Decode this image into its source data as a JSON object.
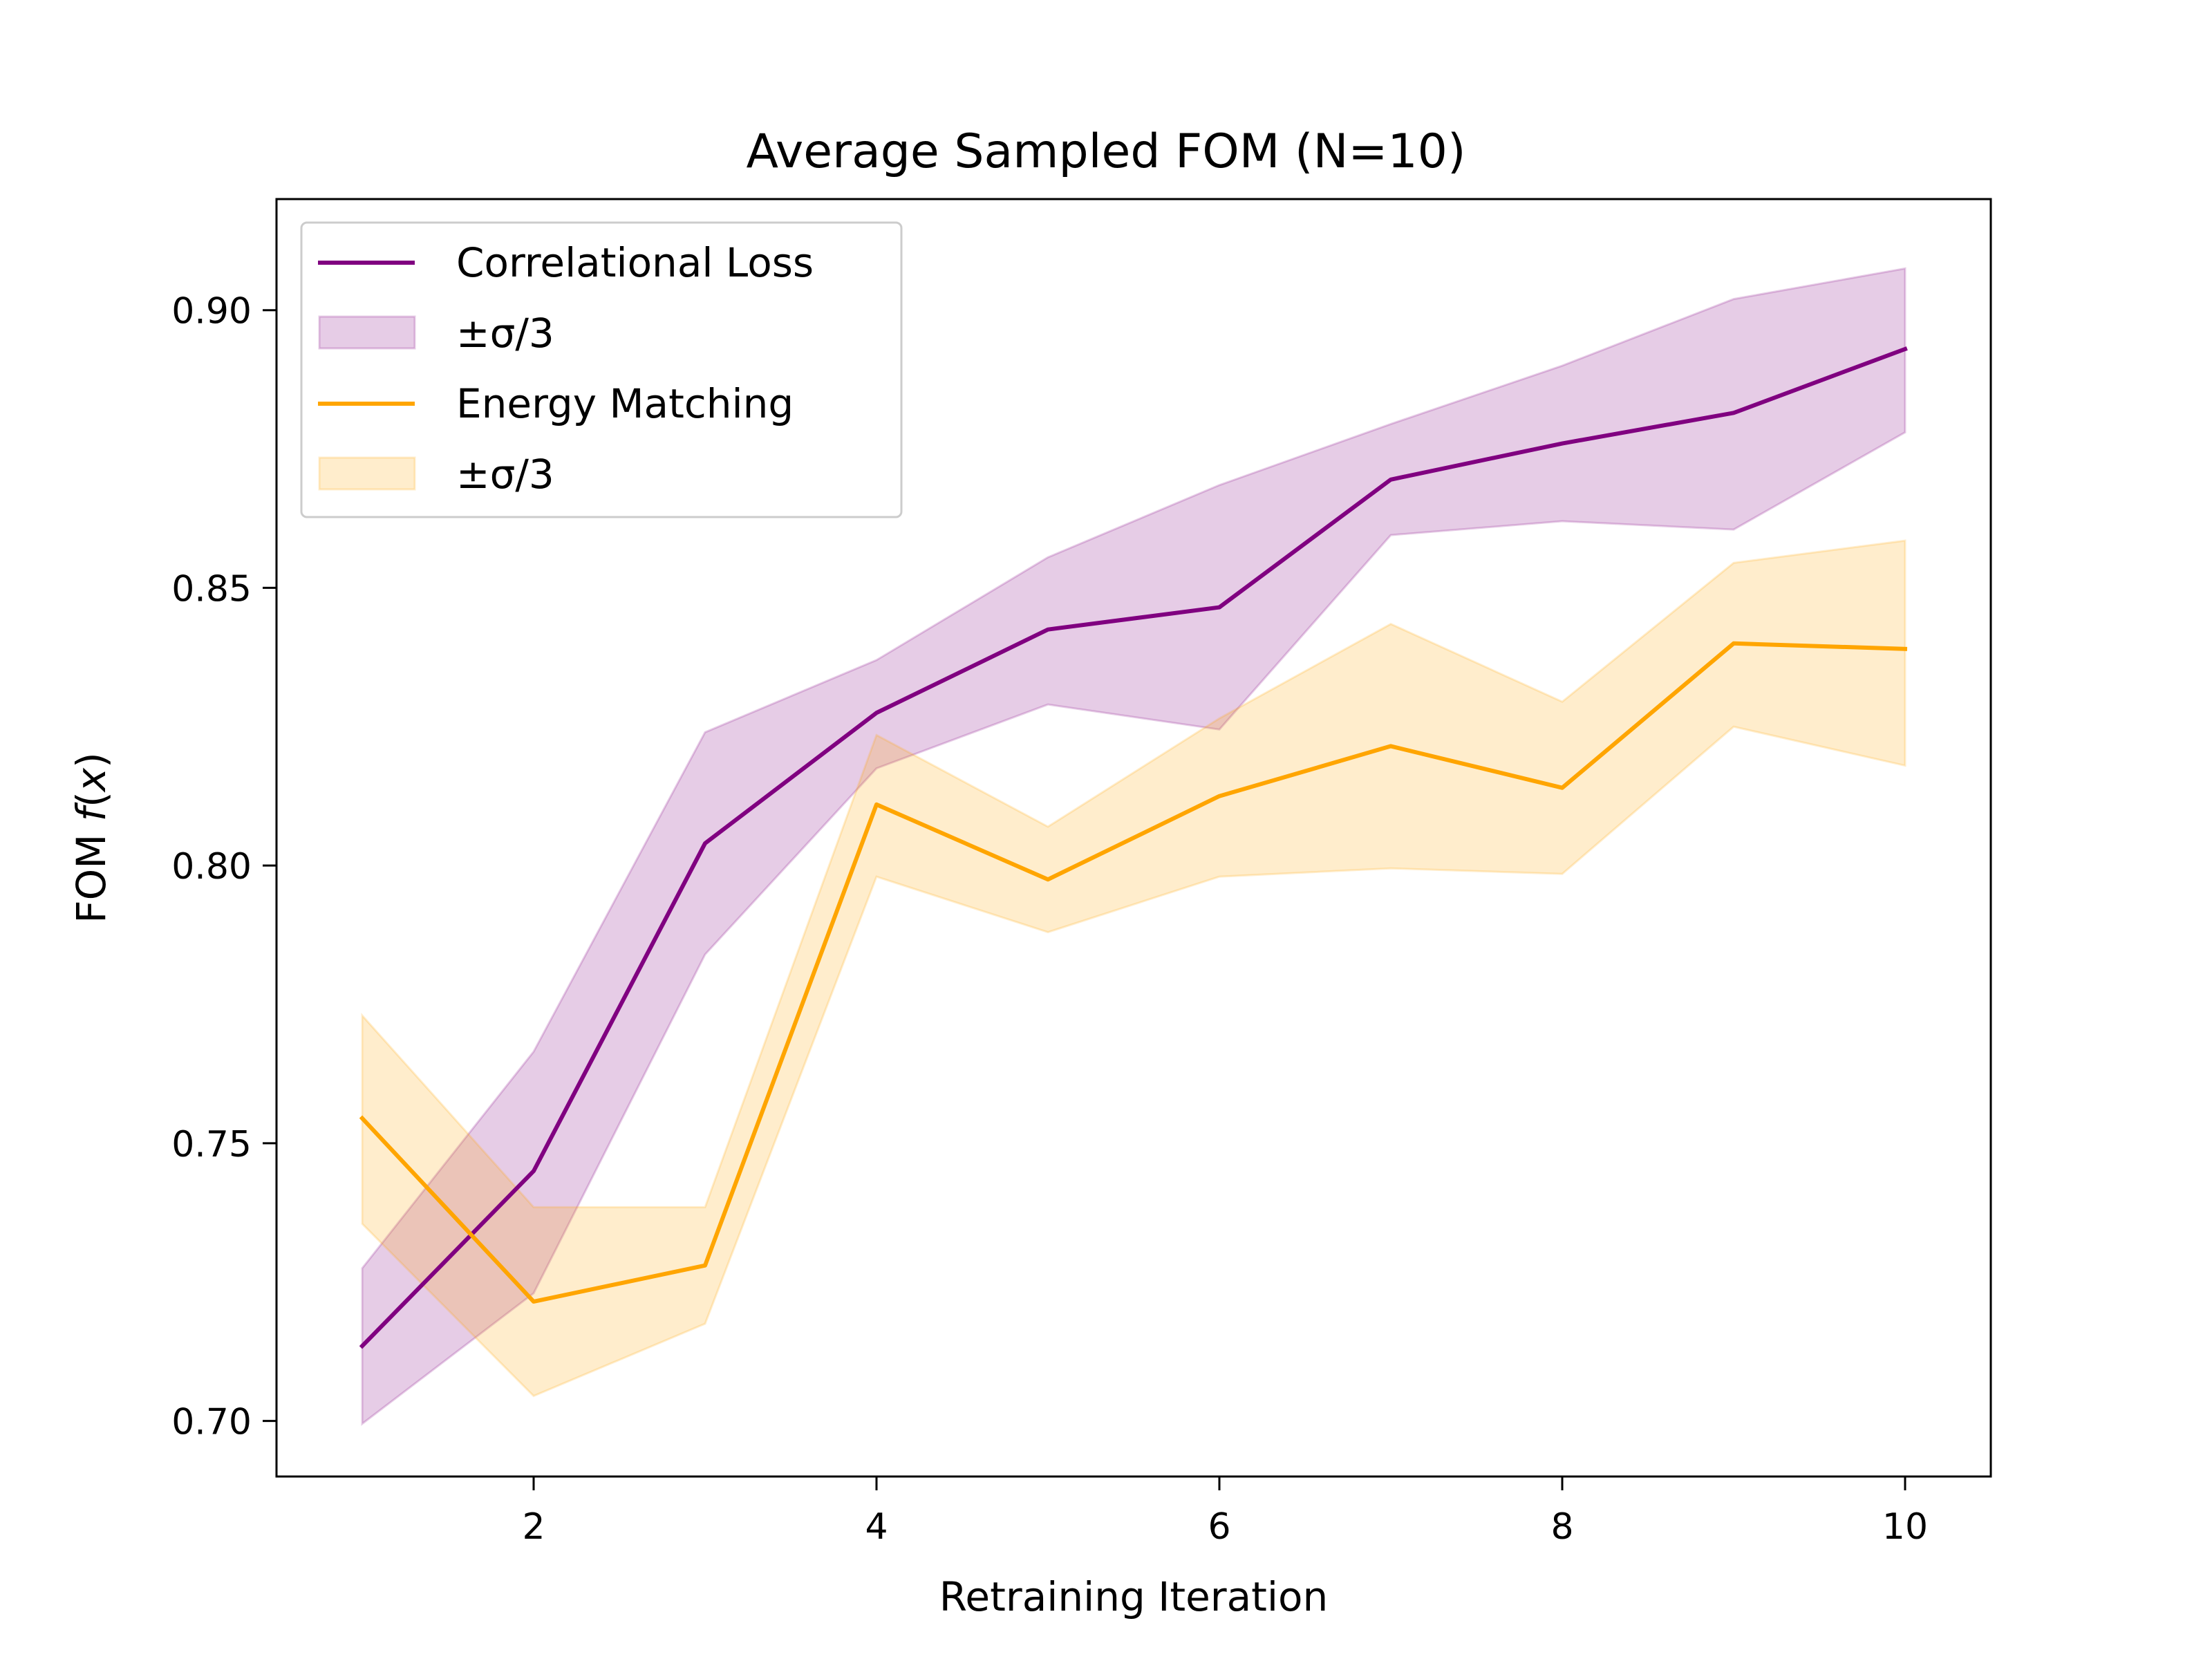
{
  "chart_data": {
    "type": "line",
    "title": "Average Sampled FOM (N=10)",
    "xlabel": "Retraining Iteration",
    "ylabel": "FOM f(x)",
    "ylabel_prefix": "FOM ",
    "ylabel_func": "f",
    "ylabel_var": "x",
    "xlim": [
      0.5,
      10.5
    ],
    "ylim": [
      0.69,
      0.92
    ],
    "xticks": [
      2,
      4,
      6,
      8,
      10
    ],
    "xtick_labels": [
      "2",
      "4",
      "6",
      "8",
      "10"
    ],
    "yticks": [
      0.7,
      0.75,
      0.8,
      0.85,
      0.9
    ],
    "ytick_labels": [
      "0.70",
      "0.75",
      "0.80",
      "0.85",
      "0.90"
    ],
    "grid": false,
    "legend_position": "top-left",
    "x": [
      1,
      2,
      3,
      4,
      5,
      6,
      7,
      8,
      9,
      10
    ],
    "series": [
      {
        "name": "Correlational Loss",
        "band_name": "±σ/3",
        "color": "#800080",
        "values": [
          0.7135,
          0.745,
          0.804,
          0.8275,
          0.8425,
          0.8465,
          0.8695,
          0.876,
          0.8815,
          0.893
        ],
        "upper": [
          0.7275,
          0.7665,
          0.824,
          0.837,
          0.8555,
          0.8685,
          0.8795,
          0.89,
          0.902,
          0.9075
        ],
        "lower": [
          0.6995,
          0.723,
          0.784,
          0.8175,
          0.829,
          0.8245,
          0.8595,
          0.862,
          0.8605,
          0.878
        ]
      },
      {
        "name": "Energy Matching",
        "band_name": "±σ/3",
        "color": "#FFA500",
        "values": [
          0.7545,
          0.7215,
          0.728,
          0.811,
          0.7975,
          0.8125,
          0.8215,
          0.814,
          0.84,
          0.839
        ],
        "upper": [
          0.773,
          0.7385,
          0.7385,
          0.8235,
          0.807,
          0.8265,
          0.8435,
          0.8295,
          0.8545,
          0.8585
        ],
        "lower": [
          0.7355,
          0.7045,
          0.7175,
          0.798,
          0.788,
          0.798,
          0.7995,
          0.7985,
          0.825,
          0.818
        ]
      }
    ]
  }
}
